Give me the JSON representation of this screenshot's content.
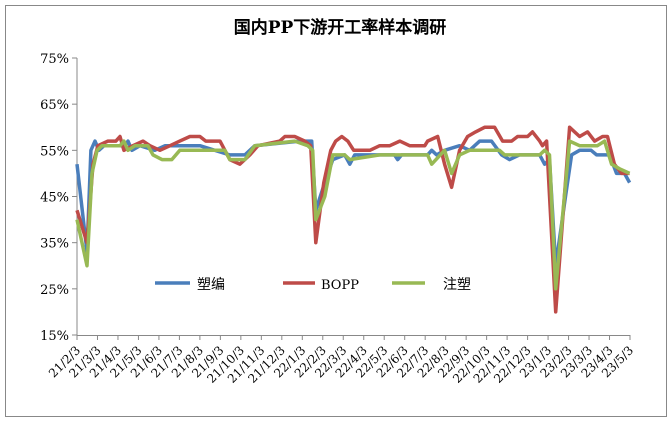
{
  "chart_data": {
    "type": "line",
    "title": "国内PP下游开工率样本调研",
    "xlabel": "",
    "ylabel": "",
    "ylim": [
      15,
      75
    ],
    "yticks": [
      "15%",
      "25%",
      "35%",
      "45%",
      "55%",
      "65%",
      "75%"
    ],
    "ytick_values": [
      15,
      25,
      35,
      45,
      55,
      65,
      75
    ],
    "x_unit": "months since 21/2/3",
    "xlim": [
      0,
      27
    ],
    "xtick_labels": [
      "21/2/3",
      "21/3/3",
      "21/4/3",
      "21/5/3",
      "21/6/3",
      "21/7/3",
      "21/8/3",
      "21/9/3",
      "21/10/3",
      "21/11/3",
      "21/12/3",
      "22/1/3",
      "22/2/3",
      "22/3/3",
      "22/4/3",
      "22/5/3",
      "22/6/3",
      "22/7/3",
      "22/8/3",
      "22/9/3",
      "22/10/3",
      "22/11/3",
      "22/12/3",
      "23/1/3",
      "23/2/3",
      "23/3/3",
      "23/4/3",
      "23/5/3"
    ],
    "grid": false,
    "legend_position": "bottom-inside",
    "series": [
      {
        "name": "塑编",
        "color": "#4A7EBB",
        "points": [
          [
            0,
            52
          ],
          [
            0.49,
            33
          ],
          [
            0.68,
            55
          ],
          [
            0.88,
            57
          ],
          [
            1.07,
            55
          ],
          [
            1.32,
            56
          ],
          [
            2.34,
            56
          ],
          [
            2.49,
            57
          ],
          [
            2.68,
            55
          ],
          [
            3.07,
            56
          ],
          [
            3.8,
            55
          ],
          [
            4.3,
            56
          ],
          [
            6,
            56
          ],
          [
            7.46,
            54
          ],
          [
            8.2,
            54
          ],
          [
            8.68,
            56
          ],
          [
            10.88,
            57
          ],
          [
            11.46,
            57
          ],
          [
            11.66,
            42
          ],
          [
            12.1,
            48
          ],
          [
            12.49,
            53
          ],
          [
            13.07,
            54
          ],
          [
            13.32,
            52
          ],
          [
            13.56,
            54
          ],
          [
            15.5,
            54
          ],
          [
            15.66,
            53
          ],
          [
            15.85,
            54
          ],
          [
            17.12,
            54
          ],
          [
            17.32,
            55
          ],
          [
            17.56,
            54
          ],
          [
            17.95,
            55
          ],
          [
            18.68,
            56
          ],
          [
            19.17,
            55
          ],
          [
            19.66,
            57
          ],
          [
            20.24,
            57
          ],
          [
            20.73,
            54
          ],
          [
            21.12,
            53
          ],
          [
            21.6,
            54
          ],
          [
            22.59,
            54
          ],
          [
            22.83,
            52
          ],
          [
            23.07,
            53
          ],
          [
            23.37,
            30
          ],
          [
            23.85,
            45
          ],
          [
            24.15,
            54
          ],
          [
            24.54,
            55
          ],
          [
            25.1,
            55
          ],
          [
            25.37,
            54
          ],
          [
            26,
            54
          ],
          [
            26.34,
            50
          ],
          [
            26.73,
            50
          ],
          [
            26.98,
            48
          ]
        ]
      },
      {
        "name": "BOPP",
        "color": "#BE4B48",
        "points": [
          [
            0,
            42
          ],
          [
            0.49,
            35
          ],
          [
            0.78,
            52
          ],
          [
            1.02,
            56
          ],
          [
            1.51,
            57
          ],
          [
            1.9,
            57
          ],
          [
            2.1,
            58
          ],
          [
            2.29,
            55
          ],
          [
            2.73,
            56
          ],
          [
            3.22,
            57
          ],
          [
            3.56,
            56
          ],
          [
            4.05,
            55
          ],
          [
            4.54,
            56
          ],
          [
            5.02,
            57
          ],
          [
            5.51,
            58
          ],
          [
            6,
            58
          ],
          [
            6.29,
            57
          ],
          [
            6.98,
            57
          ],
          [
            7.46,
            53
          ],
          [
            7.95,
            52
          ],
          [
            8.44,
            54
          ],
          [
            8.83,
            56
          ],
          [
            9.9,
            57
          ],
          [
            10.15,
            58
          ],
          [
            10.63,
            58
          ],
          [
            11.12,
            57
          ],
          [
            11.41,
            56
          ],
          [
            11.66,
            35
          ],
          [
            12.05,
            48
          ],
          [
            12.39,
            55
          ],
          [
            12.63,
            57
          ],
          [
            12.93,
            58
          ],
          [
            13.22,
            57
          ],
          [
            13.51,
            55
          ],
          [
            14.3,
            55
          ],
          [
            14.78,
            56
          ],
          [
            15.27,
            56
          ],
          [
            15.76,
            57
          ],
          [
            16.24,
            56
          ],
          [
            16.98,
            56
          ],
          [
            17.12,
            57
          ],
          [
            17.61,
            58
          ],
          [
            17.95,
            52
          ],
          [
            18.29,
            47
          ],
          [
            18.68,
            55
          ],
          [
            19.07,
            58
          ],
          [
            19.46,
            59
          ],
          [
            19.9,
            60
          ],
          [
            20.39,
            60
          ],
          [
            20.78,
            57
          ],
          [
            21.22,
            57
          ],
          [
            21.51,
            58
          ],
          [
            22,
            58
          ],
          [
            22.24,
            59
          ],
          [
            22.59,
            57
          ],
          [
            22.73,
            56
          ],
          [
            22.93,
            57
          ],
          [
            23.37,
            20
          ],
          [
            24.05,
            60
          ],
          [
            24.54,
            58
          ],
          [
            24.93,
            59
          ],
          [
            25.27,
            57
          ],
          [
            25.66,
            58
          ],
          [
            25.9,
            58
          ],
          [
            26.24,
            52
          ],
          [
            26.59,
            50
          ],
          [
            26.98,
            50
          ]
        ]
      },
      {
        "name": "注塑",
        "color": "#98B954",
        "points": [
          [
            0,
            40
          ],
          [
            0.49,
            30
          ],
          [
            0.73,
            50
          ],
          [
            0.98,
            55
          ],
          [
            1.22,
            56
          ],
          [
            2.1,
            56
          ],
          [
            2.29,
            57
          ],
          [
            2.49,
            55
          ],
          [
            2.83,
            56
          ],
          [
            3.46,
            56
          ],
          [
            3.71,
            54
          ],
          [
            4.15,
            53
          ],
          [
            4.63,
            53
          ],
          [
            5.02,
            55
          ],
          [
            7.22,
            55
          ],
          [
            7.46,
            53
          ],
          [
            8.2,
            53
          ],
          [
            8.68,
            56
          ],
          [
            10.63,
            57
          ],
          [
            11.27,
            56
          ],
          [
            11.51,
            55
          ],
          [
            11.66,
            40
          ],
          [
            12.1,
            45
          ],
          [
            12.49,
            54
          ],
          [
            13.07,
            54
          ],
          [
            13.32,
            53
          ],
          [
            14.78,
            54
          ],
          [
            17.12,
            54
          ],
          [
            17.32,
            52
          ],
          [
            17.95,
            55
          ],
          [
            18.29,
            50
          ],
          [
            18.68,
            54
          ],
          [
            19.17,
            55
          ],
          [
            20.63,
            55
          ],
          [
            20.88,
            54
          ],
          [
            22.59,
            54
          ],
          [
            22.83,
            55
          ],
          [
            23.07,
            54
          ],
          [
            23.37,
            25
          ],
          [
            24.05,
            57
          ],
          [
            24.54,
            56
          ],
          [
            25.41,
            56
          ],
          [
            25.76,
            57
          ],
          [
            26.1,
            52
          ],
          [
            26.49,
            51
          ],
          [
            26.98,
            50
          ]
        ]
      }
    ]
  }
}
